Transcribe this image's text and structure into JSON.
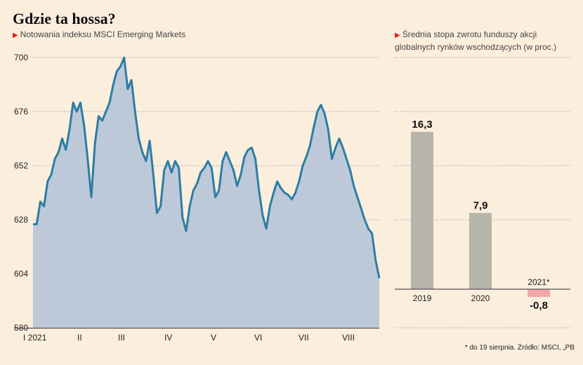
{
  "title": "Gdzie ta hossa?",
  "left_subtitle": "Notowania indeksu MSCI Emerging Markets",
  "right_subtitle": "Średnia stopa zwrotu funduszy akcji globalnych rynków wschodzących (w proc.)",
  "footnote": "* do 19 sierpnia. Źródło: MSCI, „PB",
  "colors": {
    "background": "#fbeedd",
    "line": "#2e7da3",
    "area": "#bdc9d9",
    "bar_positive": "#b7b4aa",
    "bar_negative": "#f4a7a7",
    "subtitle_marker": "#e02020"
  },
  "chart_data": [
    {
      "type": "area",
      "title": "Notowania indeksu MSCI Emerging Markets",
      "ylim": [
        580,
        700
      ],
      "yticks": [
        "580",
        "604",
        "628",
        "652",
        "676",
        "700"
      ],
      "xticks": [
        "I 2021",
        "II",
        "III",
        "IV",
        "V",
        "VI",
        "VII",
        "VIII"
      ],
      "grid": "horizontal dashed",
      "values": [
        626,
        626,
        636,
        634,
        645,
        648,
        655,
        658,
        664,
        659,
        668,
        680,
        676,
        680,
        670,
        655,
        638,
        662,
        674,
        672,
        676,
        680,
        688,
        694,
        696,
        700,
        686,
        690,
        676,
        664,
        658,
        654,
        663,
        648,
        631,
        634,
        650,
        654,
        649,
        654,
        651,
        629,
        623,
        634,
        641,
        644,
        649,
        651,
        654,
        651,
        638,
        641,
        654,
        658,
        654,
        650,
        643,
        648,
        656,
        659,
        660,
        655,
        641,
        630,
        624,
        634,
        640,
        645,
        642,
        640,
        639,
        637,
        640,
        645,
        652,
        656,
        661,
        669,
        676,
        679,
        675,
        668,
        655,
        660,
        664,
        660,
        655,
        650,
        643,
        638,
        633,
        628,
        624,
        622,
        610,
        602
      ]
    },
    {
      "type": "bar",
      "title": "Średnia stopa zwrotu funduszy akcji globalnych rynków wschodzących (w proc.)",
      "categories": [
        "2019",
        "2020",
        "2021*"
      ],
      "values": [
        16.3,
        7.9,
        -0.8
      ],
      "value_labels": [
        "16,3",
        "7,9",
        "-0,8"
      ],
      "ylim": [
        -4,
        24
      ]
    }
  ]
}
